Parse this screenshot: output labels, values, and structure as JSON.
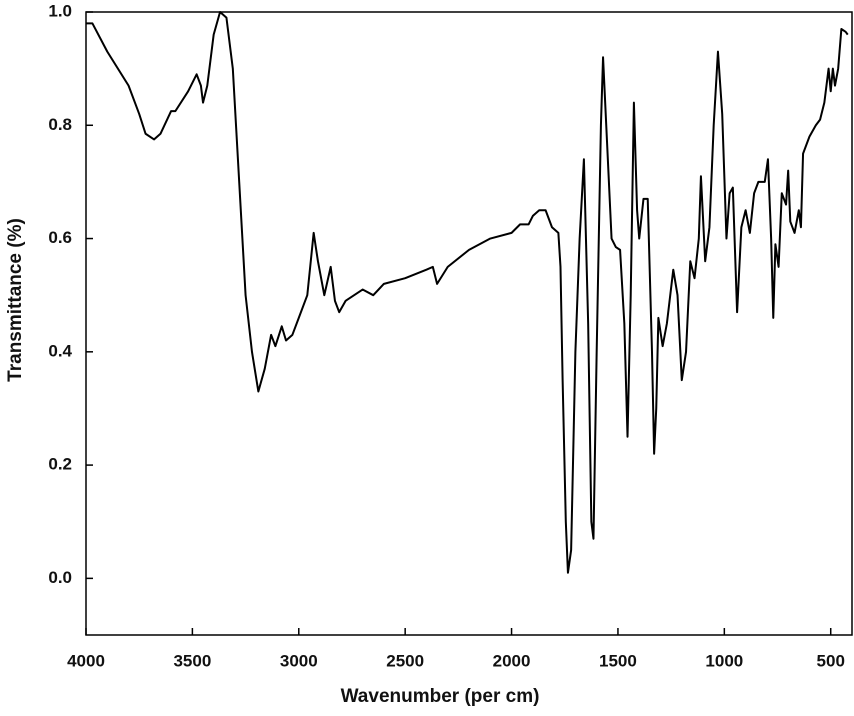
{
  "chart_data": {
    "type": "line",
    "x_label": "Wavenumber (per cm)",
    "y_label": "Transmittance (%)",
    "xlim": [
      4000,
      400
    ],
    "xticks": [
      4000,
      3500,
      3000,
      2500,
      2000,
      1500,
      1000,
      500
    ],
    "ylim": [
      -0.1,
      1.0
    ],
    "yticks": [
      {
        "value": 0,
        "label": "0.0"
      },
      0.2,
      0.4,
      0.6,
      0.8,
      {
        "value": 1,
        "label": "1.0"
      }
    ],
    "grid": false,
    "series": [
      {
        "color": "#000000",
        "x": [
          4000,
          3970,
          3900,
          3800,
          3750,
          3720,
          3680,
          3650,
          3600,
          3580,
          3520,
          3480,
          3460,
          3450,
          3430,
          3400,
          3370,
          3340,
          3310,
          3280,
          3250,
          3220,
          3190,
          3160,
          3130,
          3110,
          3080,
          3060,
          3030,
          3000,
          2960,
          2930,
          2910,
          2880,
          2850,
          2830,
          2810,
          2780,
          2700,
          2650,
          2600,
          2500,
          2400,
          2370,
          2350,
          2300,
          2200,
          2100,
          2000,
          1960,
          1920,
          1900,
          1870,
          1840,
          1810,
          1780,
          1770,
          1760,
          1745,
          1735,
          1720,
          1700,
          1680,
          1660,
          1640,
          1625,
          1615,
          1600,
          1580,
          1570,
          1555,
          1530,
          1510,
          1490,
          1470,
          1455,
          1440,
          1425,
          1410,
          1400,
          1380,
          1360,
          1340,
          1330,
          1320,
          1310,
          1290,
          1270,
          1240,
          1220,
          1200,
          1180,
          1160,
          1140,
          1120,
          1110,
          1090,
          1070,
          1050,
          1030,
          1010,
          990,
          975,
          960,
          940,
          920,
          900,
          880,
          860,
          840,
          810,
          795,
          780,
          770,
          760,
          745,
          730,
          710,
          700,
          690,
          670,
          650,
          640,
          630,
          600,
          570,
          550,
          530,
          510,
          500,
          490,
          480,
          465,
          450,
          430,
          420
        ],
        "values": [
          0.98,
          0.98,
          0.93,
          0.87,
          0.82,
          0.785,
          0.775,
          0.785,
          0.825,
          0.825,
          0.86,
          0.89,
          0.87,
          0.84,
          0.87,
          0.96,
          1.0,
          0.99,
          0.9,
          0.7,
          0.5,
          0.4,
          0.33,
          0.37,
          0.43,
          0.41,
          0.445,
          0.42,
          0.43,
          0.46,
          0.5,
          0.61,
          0.56,
          0.5,
          0.55,
          0.49,
          0.47,
          0.49,
          0.51,
          0.5,
          0.52,
          0.53,
          0.545,
          0.55,
          0.52,
          0.55,
          0.58,
          0.6,
          0.61,
          0.625,
          0.625,
          0.64,
          0.65,
          0.65,
          0.62,
          0.61,
          0.55,
          0.35,
          0.1,
          0.01,
          0.05,
          0.4,
          0.6,
          0.74,
          0.45,
          0.1,
          0.07,
          0.4,
          0.8,
          0.92,
          0.8,
          0.6,
          0.585,
          0.58,
          0.45,
          0.25,
          0.5,
          0.84,
          0.65,
          0.6,
          0.67,
          0.67,
          0.4,
          0.22,
          0.3,
          0.46,
          0.41,
          0.45,
          0.545,
          0.5,
          0.35,
          0.4,
          0.56,
          0.53,
          0.6,
          0.71,
          0.56,
          0.62,
          0.8,
          0.93,
          0.82,
          0.6,
          0.68,
          0.69,
          0.47,
          0.62,
          0.65,
          0.61,
          0.68,
          0.7,
          0.7,
          0.74,
          0.6,
          0.46,
          0.59,
          0.55,
          0.68,
          0.66,
          0.72,
          0.63,
          0.61,
          0.65,
          0.62,
          0.75,
          0.78,
          0.8,
          0.81,
          0.84,
          0.9,
          0.86,
          0.9,
          0.87,
          0.9,
          0.97,
          0.965,
          0.96
        ]
      }
    ]
  }
}
